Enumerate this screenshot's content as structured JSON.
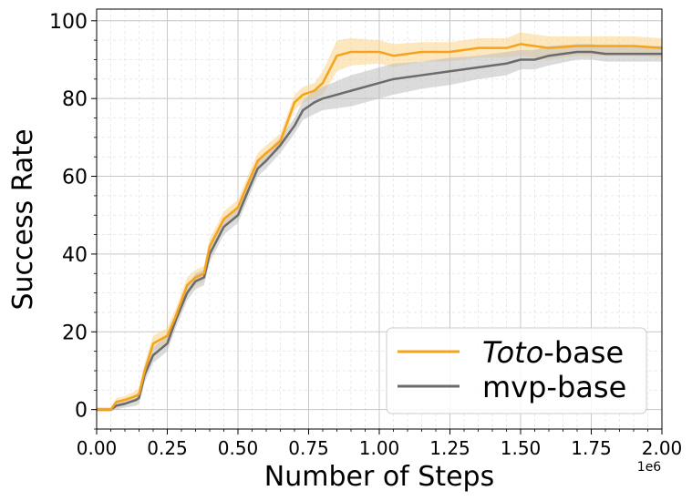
{
  "chart_data": {
    "type": "line",
    "xlabel": "Number of Steps",
    "ylabel": "Success Rate",
    "x_offset_label": "1e6",
    "xlim": [
      0,
      2.0
    ],
    "ylim": [
      -5,
      103
    ],
    "x_ticks": [
      {
        "value": 0.0,
        "label": "0.00"
      },
      {
        "value": 0.25,
        "label": "0.25"
      },
      {
        "value": 0.5,
        "label": "0.50"
      },
      {
        "value": 0.75,
        "label": "0.75"
      },
      {
        "value": 1.0,
        "label": "1.00"
      },
      {
        "value": 1.25,
        "label": "1.25"
      },
      {
        "value": 1.5,
        "label": "1.50"
      },
      {
        "value": 1.75,
        "label": "1.75"
      },
      {
        "value": 2.0,
        "label": "2.00"
      }
    ],
    "y_ticks": [
      {
        "value": 0,
        "label": "0"
      },
      {
        "value": 20,
        "label": "20"
      },
      {
        "value": 40,
        "label": "40"
      },
      {
        "value": 60,
        "label": "60"
      },
      {
        "value": 80,
        "label": "80"
      },
      {
        "value": 100,
        "label": "100"
      }
    ],
    "grid": "major and minor",
    "legend_position": "lower-right",
    "series": [
      {
        "name_italic": "Toto",
        "name_rest": "-base",
        "color": "#f5a31a",
        "band_color": "#fbd48a",
        "x": [
          0,
          0.05,
          0.07,
          0.1,
          0.14,
          0.15,
          0.17,
          0.2,
          0.25,
          0.28,
          0.32,
          0.35,
          0.38,
          0.4,
          0.45,
          0.5,
          0.54,
          0.57,
          0.6,
          0.65,
          0.7,
          0.73,
          0.77,
          0.8,
          0.85,
          0.9,
          1.0,
          1.05,
          1.15,
          1.25,
          1.35,
          1.45,
          1.5,
          1.55,
          1.6,
          1.7,
          1.75,
          1.8,
          1.9,
          2.0
        ],
        "y": [
          0,
          0,
          2,
          2.5,
          3.5,
          4,
          10,
          17,
          19,
          24,
          32,
          34,
          35,
          42,
          49,
          52,
          59,
          64,
          66,
          69,
          79,
          81,
          82,
          84,
          91,
          92,
          92,
          91,
          92,
          92,
          93,
          93,
          94,
          93.5,
          93,
          93.5,
          93.5,
          93.5,
          93.5,
          93
        ],
        "band": [
          0.5,
          0.5,
          1,
          1,
          1.5,
          1.5,
          2,
          2,
          2,
          2,
          2,
          2,
          2,
          2,
          2,
          2,
          2,
          2,
          2,
          2,
          2,
          2,
          2,
          3,
          4,
          3.5,
          3,
          3,
          2.5,
          2.5,
          2.5,
          2.5,
          3,
          3,
          3,
          2.5,
          2.5,
          2.5,
          2.5,
          2.5
        ]
      },
      {
        "name": "mvp-base",
        "color": "#6b6b6b",
        "band_color": "#bdbdbd",
        "x": [
          0,
          0.05,
          0.07,
          0.1,
          0.14,
          0.15,
          0.17,
          0.2,
          0.25,
          0.28,
          0.32,
          0.35,
          0.38,
          0.4,
          0.45,
          0.5,
          0.54,
          0.57,
          0.6,
          0.65,
          0.7,
          0.73,
          0.77,
          0.8,
          0.85,
          0.9,
          1.0,
          1.05,
          1.15,
          1.25,
          1.35,
          1.45,
          1.5,
          1.55,
          1.6,
          1.7,
          1.75,
          1.8,
          1.9,
          2.0
        ],
        "y": [
          0,
          0,
          1,
          1.5,
          2.5,
          3,
          9,
          14,
          17,
          23,
          30,
          33,
          34,
          40,
          47,
          50,
          57,
          62,
          64,
          68,
          73,
          77,
          79,
          80,
          81,
          82,
          84,
          85,
          86,
          87,
          88,
          89,
          90,
          90,
          91,
          92,
          92,
          91.5,
          91.5,
          91.5
        ],
        "band": [
          0.5,
          0.5,
          1,
          1,
          1.5,
          1.5,
          2,
          2,
          2,
          2,
          2,
          2,
          2,
          2,
          2,
          2,
          2,
          2,
          2,
          2,
          2,
          2.5,
          3,
          3,
          3.5,
          4,
          4,
          4,
          3.5,
          3.5,
          3,
          3,
          2.5,
          2.5,
          2.5,
          2,
          2,
          2,
          2,
          2
        ]
      }
    ]
  }
}
